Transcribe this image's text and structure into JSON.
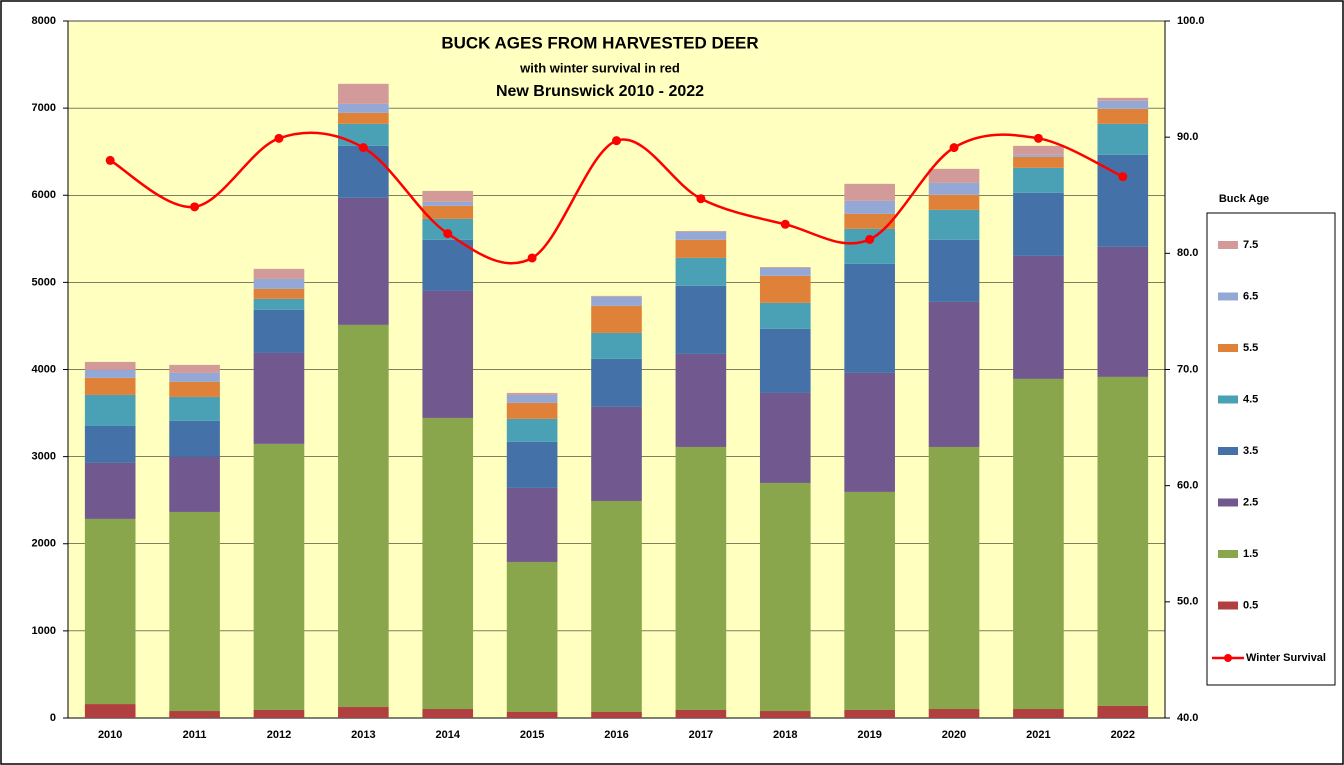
{
  "chart_data": {
    "type": "bar",
    "stacked": true,
    "title": "BUCK AGES FROM HARVESTED DEER",
    "subtitles": [
      "with winter survival in red",
      "New Brunswick 2010 - 2022"
    ],
    "legend_title": "Buck Age",
    "legend": "right",
    "categories": [
      "2010",
      "2011",
      "2012",
      "2013",
      "2014",
      "2015",
      "2016",
      "2017",
      "2018",
      "2019",
      "2020",
      "2021",
      "2022"
    ],
    "series": [
      {
        "name": "0.5",
        "color": "#b0403f",
        "values": [
          160,
          80,
          92,
          126,
          103,
          69,
          69,
          92,
          80,
          92,
          103,
          103,
          138
        ]
      },
      {
        "name": "1.5",
        "color": "#8aa64c",
        "values": [
          2125,
          2285,
          3054,
          4386,
          3341,
          1722,
          2422,
          3019,
          2618,
          2503,
          3008,
          3789,
          3777
        ]
      },
      {
        "name": "2.5",
        "color": "#71588f",
        "values": [
          643,
          632,
          1044,
          1458,
          1458,
          850,
          1080,
          1068,
          1033,
          1366,
          1665,
          1412,
          1493
        ]
      },
      {
        "name": "3.5",
        "color": "#4471a8",
        "values": [
          424,
          413,
          494,
          597,
          586,
          528,
          551,
          781,
          735,
          1251,
          712,
          724,
          1056
        ]
      },
      {
        "name": "4.5",
        "color": "#4aa0b5",
        "values": [
          356,
          275,
          127,
          253,
          241,
          264,
          298,
          321,
          299,
          402,
          344,
          287,
          356
        ]
      },
      {
        "name": "5.5",
        "color": "#e0813a",
        "values": [
          196,
          173,
          114,
          126,
          149,
          184,
          310,
          207,
          310,
          172,
          173,
          126,
          172
        ]
      },
      {
        "name": "6.5",
        "color": "#94a8d6",
        "values": [
          91,
          103,
          115,
          103,
          46,
          91,
          104,
          92,
          91,
          150,
          137,
          23,
          92
        ]
      },
      {
        "name": "7.5",
        "color": "#d39a9a",
        "values": [
          92,
          92,
          115,
          230,
          126,
          23,
          11,
          10,
          10,
          195,
          161,
          103,
          34
        ]
      },
      {
        "name": "Winter Survival",
        "type": "line",
        "axis": "y2",
        "color": "#ff0000",
        "values": [
          88.0,
          84.0,
          89.9,
          89.1,
          81.7,
          79.6,
          89.7,
          84.7,
          82.5,
          81.2,
          89.1,
          89.9,
          86.6
        ]
      }
    ],
    "ylim": [
      0,
      8000
    ],
    "yticks": [
      0,
      1000,
      2000,
      3000,
      4000,
      5000,
      6000,
      7000,
      8000
    ],
    "y2lim": [
      40,
      100
    ],
    "y2ticks": [
      {
        "value": 40,
        "label": "40.0"
      },
      {
        "value": 50,
        "label": "50.0"
      },
      {
        "value": 60,
        "label": "60.0"
      },
      {
        "value": 70,
        "label": "70.0"
      },
      {
        "value": 80,
        "label": "80.0"
      },
      {
        "value": 90,
        "label": "90.0"
      },
      {
        "value": 100,
        "label": "100.0"
      }
    ],
    "grid": true,
    "plot_background": "#ffffc0"
  }
}
